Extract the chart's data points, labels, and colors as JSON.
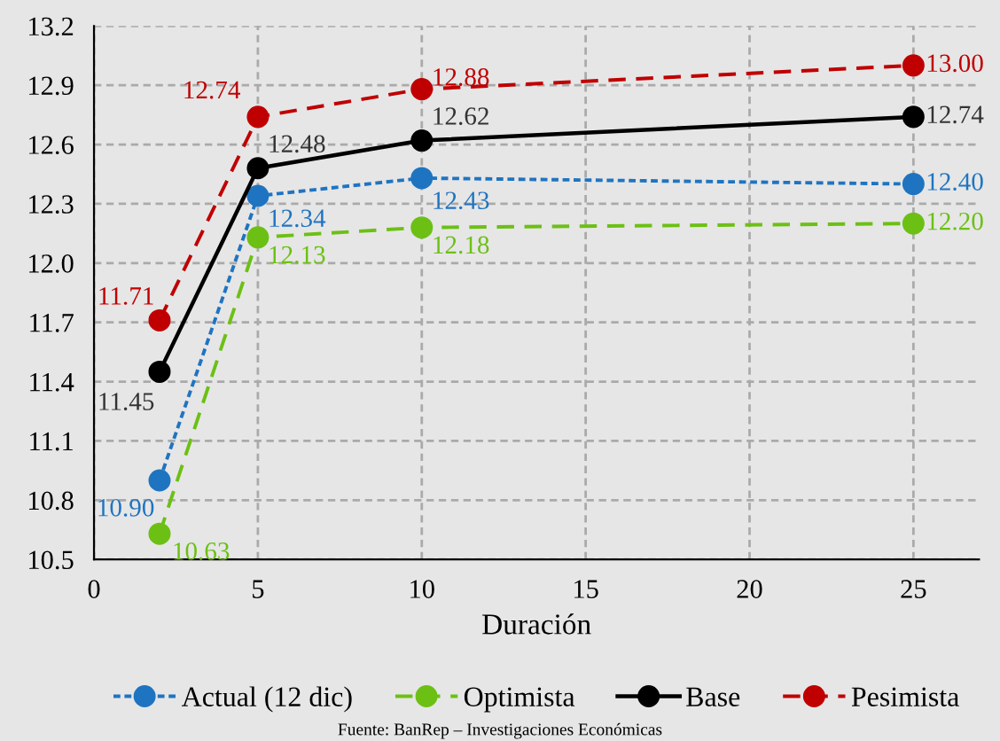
{
  "chart_data": {
    "type": "line",
    "xlabel": "Duración",
    "x": [
      2,
      5,
      10,
      25
    ],
    "series": [
      {
        "name": "Actual (12 dic)",
        "color": "#1f74c1",
        "values": [
          10.9,
          12.34,
          12.43,
          12.4
        ],
        "value_labels": [
          "10.90",
          "12.34",
          "12.43",
          "12.40"
        ],
        "line_style": "dotted"
      },
      {
        "name": "Optimista",
        "color": "#6cc014",
        "values": [
          10.63,
          12.13,
          12.18,
          12.2
        ],
        "value_labels": [
          "10.63",
          "12.13",
          "12.18",
          "12.20"
        ],
        "line_style": "dashed"
      },
      {
        "name": "Base",
        "color": "#000000",
        "values": [
          11.45,
          12.48,
          12.62,
          12.74
        ],
        "value_labels": [
          "11.45",
          "12.48",
          "12.62",
          "12.74"
        ],
        "line_style": "solid"
      },
      {
        "name": "Pesimista",
        "color": "#c00000",
        "values": [
          11.71,
          12.74,
          12.88,
          13.0
        ],
        "value_labels": [
          "11.71",
          "12.74",
          "12.88",
          "13.00"
        ],
        "line_style": "dashed"
      }
    ],
    "marker": "circle",
    "grid": true,
    "legend": "bottom",
    "xlim": [
      0,
      27
    ],
    "xticks": [
      0,
      5,
      10,
      15,
      20,
      25
    ],
    "ylim": [
      10.5,
      13.2
    ],
    "yticks": [
      {
        "value": 10.5,
        "label": "10.5"
      },
      {
        "value": 10.8,
        "label": "10.8"
      },
      {
        "value": 11.1,
        "label": "11.1"
      },
      {
        "value": 11.4,
        "label": "11.4"
      },
      {
        "value": 11.7,
        "label": "11.7"
      },
      {
        "value": 12.0,
        "label": "12.0"
      },
      {
        "value": 12.3,
        "label": "12.3"
      },
      {
        "value": 12.6,
        "label": "12.6"
      },
      {
        "value": 12.9,
        "label": "12.9"
      },
      {
        "value": 13.2,
        "label": "13.2"
      }
    ],
    "annotations": [
      "Fuente: BanRep – Investigaciones Económicas"
    ]
  }
}
